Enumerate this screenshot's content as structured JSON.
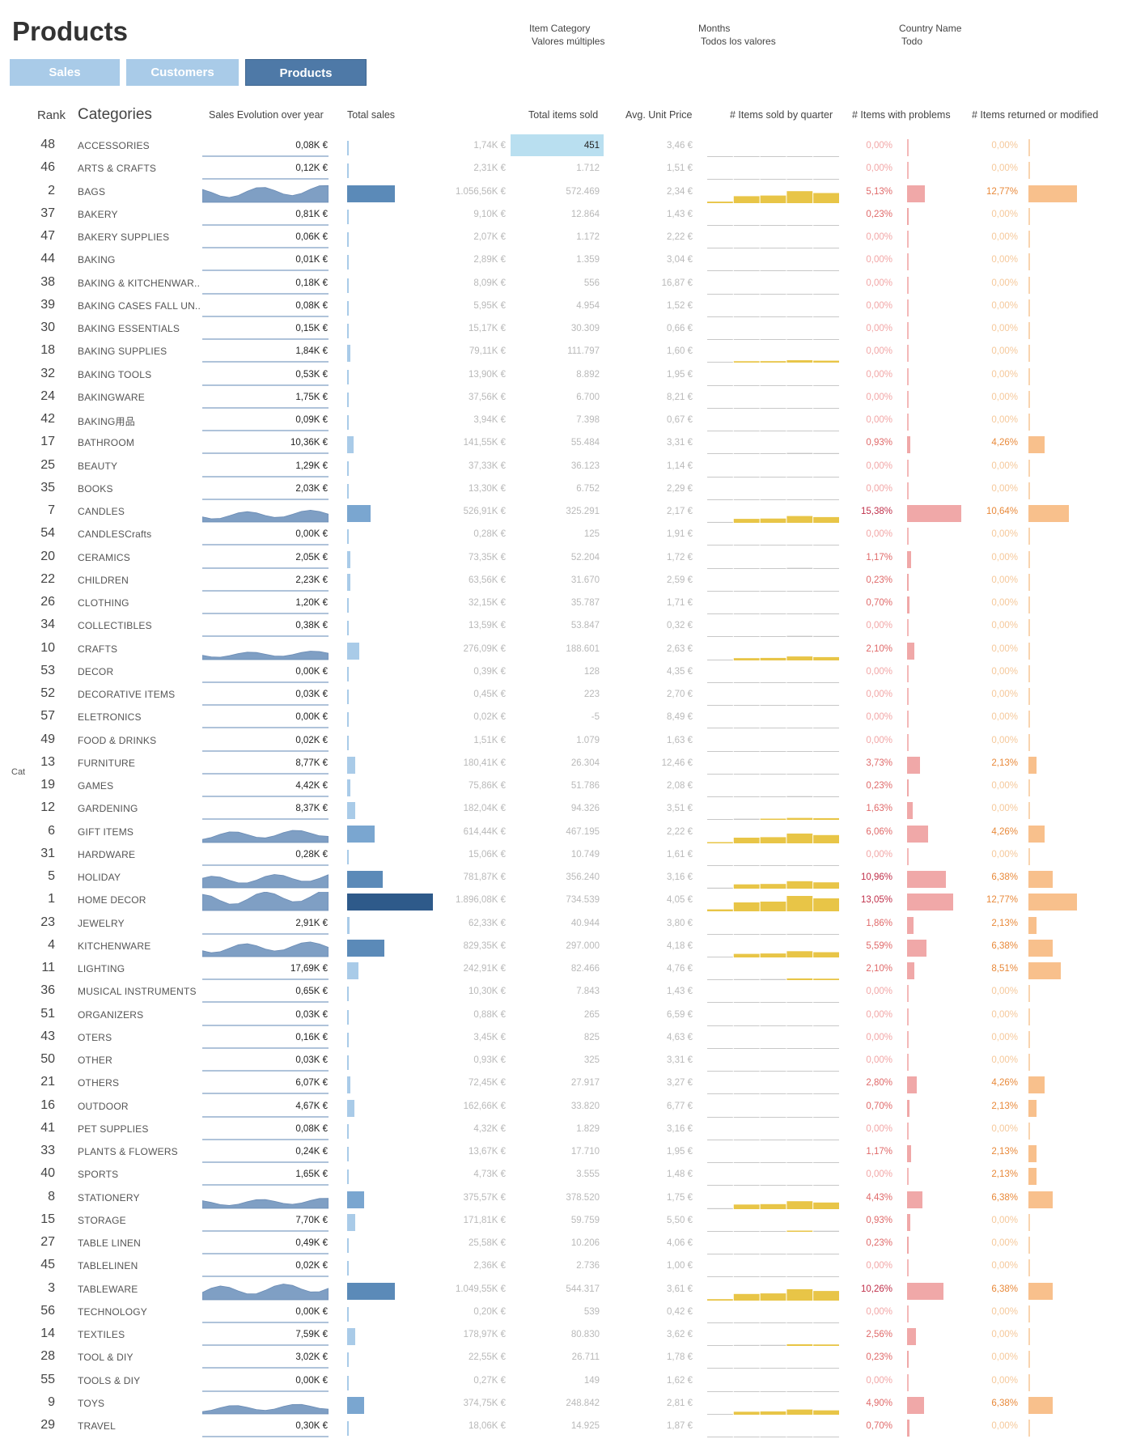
{
  "title": "Products",
  "filters": [
    {
      "label": "Item Category",
      "value": "Valores múltiples"
    },
    {
      "label": "Months",
      "value": "Todos los valores"
    },
    {
      "label": "Country Name",
      "value": "Todo"
    }
  ],
  "tabs": [
    {
      "label": "Sales",
      "active": false
    },
    {
      "label": "Customers",
      "active": false
    },
    {
      "label": "Products",
      "active": true
    }
  ],
  "headers": {
    "rank": "Rank",
    "categories": "Categories",
    "evolution": "Sales Evolution over year",
    "total_sales": "Total sales",
    "total_items": "Total items sold",
    "avg_price": "Avg. Unit Price",
    "items_quarter": "# Items sold by quarter",
    "problems": "# Items with problems",
    "returned": "# Items returned or modified"
  },
  "side_label": "Cat",
  "colors": {
    "total_sales_light": "#a9cbe8",
    "total_sales_dark": "#2e5a8a",
    "evolution_fill": "#7f9fc4",
    "quarter_bar": "#e8c547",
    "problems_bar": "#f0a8a8",
    "returned_bar": "#f8c08c",
    "highlight_cell": "#b9dff0"
  },
  "rows": [
    {
      "rank": "48",
      "category": "ACCESSORIES",
      "year_value": "0,08K €",
      "total_sales": "1,74K €",
      "items": "451",
      "avg_price": "3,46 €",
      "problems": "0,00%",
      "returned": "0,00%"
    },
    {
      "rank": "46",
      "category": "ARTS & CRAFTS",
      "year_value": "0,12K €",
      "total_sales": "2,31K €",
      "items": "1.712",
      "avg_price": "1,51 €",
      "problems": "0,00%",
      "returned": "0,00%"
    },
    {
      "rank": "2",
      "category": "BAGS",
      "year_value": "",
      "total_sales": "1.056,56K €",
      "items": "572.469",
      "avg_price": "2,34 €",
      "problems": "5,13%",
      "returned": "12,77%"
    },
    {
      "rank": "37",
      "category": "BAKERY",
      "year_value": "0,81K €",
      "total_sales": "9,10K €",
      "items": "12.864",
      "avg_price": "1,43 €",
      "problems": "0,23%",
      "returned": "0,00%"
    },
    {
      "rank": "47",
      "category": "BAKERY SUPPLIES",
      "year_value": "0,06K €",
      "total_sales": "2,07K €",
      "items": "1.172",
      "avg_price": "2,22 €",
      "problems": "0,00%",
      "returned": "0,00%"
    },
    {
      "rank": "44",
      "category": "BAKING",
      "year_value": "0,01K €",
      "total_sales": "2,89K €",
      "items": "1.359",
      "avg_price": "3,04 €",
      "problems": "0,00%",
      "returned": "0,00%"
    },
    {
      "rank": "38",
      "category": "BAKING & KITCHENWAR..",
      "year_value": "0,18K €",
      "total_sales": "8,09K €",
      "items": "556",
      "avg_price": "16,87 €",
      "problems": "0,00%",
      "returned": "0,00%"
    },
    {
      "rank": "39",
      "category": "BAKING CASES FALL UN..",
      "year_value": "0,08K €",
      "total_sales": "5,95K €",
      "items": "4.954",
      "avg_price": "1,52 €",
      "problems": "0,00%",
      "returned": "0,00%"
    },
    {
      "rank": "30",
      "category": "BAKING ESSENTIALS",
      "year_value": "0,15K €",
      "total_sales": "15,17K €",
      "items": "30.309",
      "avg_price": "0,66 €",
      "problems": "0,00%",
      "returned": "0,00%"
    },
    {
      "rank": "18",
      "category": "BAKING SUPPLIES",
      "year_value": "1,84K €",
      "total_sales": "79,11K €",
      "items": "111.797",
      "avg_price": "1,60 €",
      "problems": "0,00%",
      "returned": "0,00%"
    },
    {
      "rank": "32",
      "category": "BAKING TOOLS",
      "year_value": "0,53K €",
      "total_sales": "13,90K €",
      "items": "8.892",
      "avg_price": "1,95 €",
      "problems": "0,00%",
      "returned": "0,00%"
    },
    {
      "rank": "24",
      "category": "BAKINGWARE",
      "year_value": "1,75K €",
      "total_sales": "37,56K €",
      "items": "6.700",
      "avg_price": "8,21 €",
      "problems": "0,00%",
      "returned": "0,00%"
    },
    {
      "rank": "42",
      "category": "BAKING用品",
      "year_value": "0,09K €",
      "total_sales": "3,94K €",
      "items": "7.398",
      "avg_price": "0,67 €",
      "problems": "0,00%",
      "returned": "0,00%"
    },
    {
      "rank": "17",
      "category": "BATHROOM",
      "year_value": "10,36K €",
      "total_sales": "141,55K €",
      "items": "55.484",
      "avg_price": "3,31 €",
      "problems": "0,93%",
      "returned": "4,26%"
    },
    {
      "rank": "25",
      "category": "BEAUTY",
      "year_value": "1,29K €",
      "total_sales": "37,33K €",
      "items": "36.123",
      "avg_price": "1,14 €",
      "problems": "0,00%",
      "returned": "0,00%"
    },
    {
      "rank": "35",
      "category": "BOOKS",
      "year_value": "2,03K €",
      "total_sales": "13,30K €",
      "items": "6.752",
      "avg_price": "2,29 €",
      "problems": "0,00%",
      "returned": "0,00%"
    },
    {
      "rank": "7",
      "category": "CANDLES",
      "year_value": "",
      "total_sales": "526,91K €",
      "items": "325.291",
      "avg_price": "2,17 €",
      "problems": "15,38%",
      "returned": "10,64%"
    },
    {
      "rank": "54",
      "category": "CANDLESCrafts",
      "year_value": "0,00K €",
      "total_sales": "0,28K €",
      "items": "125",
      "avg_price": "1,91 €",
      "problems": "0,00%",
      "returned": "0,00%"
    },
    {
      "rank": "20",
      "category": "CERAMICS",
      "year_value": "2,05K €",
      "total_sales": "73,35K €",
      "items": "52.204",
      "avg_price": "1,72 €",
      "problems": "1,17%",
      "returned": "0,00%"
    },
    {
      "rank": "22",
      "category": "CHILDREN",
      "year_value": "2,23K €",
      "total_sales": "63,56K €",
      "items": "31.670",
      "avg_price": "2,59 €",
      "problems": "0,23%",
      "returned": "0,00%"
    },
    {
      "rank": "26",
      "category": "CLOTHING",
      "year_value": "1,20K €",
      "total_sales": "32,15K €",
      "items": "35.787",
      "avg_price": "1,71 €",
      "problems": "0,70%",
      "returned": "0,00%"
    },
    {
      "rank": "34",
      "category": "COLLECTIBLES",
      "year_value": "0,38K €",
      "total_sales": "13,59K €",
      "items": "53.847",
      "avg_price": "0,32 €",
      "problems": "0,00%",
      "returned": "0,00%"
    },
    {
      "rank": "10",
      "category": "CRAFTS",
      "year_value": "",
      "total_sales": "276,09K €",
      "items": "188.601",
      "avg_price": "2,63 €",
      "problems": "2,10%",
      "returned": "0,00%"
    },
    {
      "rank": "53",
      "category": "DECOR",
      "year_value": "0,00K €",
      "total_sales": "0,39K €",
      "items": "128",
      "avg_price": "4,35 €",
      "problems": "0,00%",
      "returned": "0,00%"
    },
    {
      "rank": "52",
      "category": "DECORATIVE ITEMS",
      "year_value": "0,03K €",
      "total_sales": "0,45K €",
      "items": "223",
      "avg_price": "2,70 €",
      "problems": "0,00%",
      "returned": "0,00%"
    },
    {
      "rank": "57",
      "category": "ELETRONICS",
      "year_value": "0,00K €",
      "total_sales": "0,02K €",
      "items": "-5",
      "avg_price": "8,49 €",
      "problems": "0,00%",
      "returned": "0,00%"
    },
    {
      "rank": "49",
      "category": "FOOD & DRINKS",
      "year_value": "0,02K €",
      "total_sales": "1,51K €",
      "items": "1.079",
      "avg_price": "1,63 €",
      "problems": "0,00%",
      "returned": "0,00%"
    },
    {
      "rank": "13",
      "category": "FURNITURE",
      "year_value": "8,77K €",
      "total_sales": "180,41K €",
      "items": "26.304",
      "avg_price": "12,46 €",
      "problems": "3,73%",
      "returned": "2,13%"
    },
    {
      "rank": "19",
      "category": "GAMES",
      "year_value": "4,42K €",
      "total_sales": "75,86K €",
      "items": "51.786",
      "avg_price": "2,08 €",
      "problems": "0,23%",
      "returned": "0,00%"
    },
    {
      "rank": "12",
      "category": "GARDENING",
      "year_value": "8,37K €",
      "total_sales": "182,04K €",
      "items": "94.326",
      "avg_price": "3,51 €",
      "problems": "1,63%",
      "returned": "0,00%"
    },
    {
      "rank": "6",
      "category": "GIFT ITEMS",
      "year_value": "",
      "total_sales": "614,44K €",
      "items": "467.195",
      "avg_price": "2,22 €",
      "problems": "6,06%",
      "returned": "4,26%"
    },
    {
      "rank": "31",
      "category": "HARDWARE",
      "year_value": "0,28K €",
      "total_sales": "15,06K €",
      "items": "10.749",
      "avg_price": "1,61 €",
      "problems": "0,00%",
      "returned": "0,00%"
    },
    {
      "rank": "5",
      "category": "HOLIDAY",
      "year_value": "",
      "total_sales": "781,87K €",
      "items": "356.240",
      "avg_price": "3,16 €",
      "problems": "10,96%",
      "returned": "6,38%"
    },
    {
      "rank": "1",
      "category": "HOME DECOR",
      "year_value": "",
      "total_sales": "1.896,08K €",
      "items": "734.539",
      "avg_price": "4,05 €",
      "problems": "13,05%",
      "returned": "12,77%"
    },
    {
      "rank": "23",
      "category": "JEWELRY",
      "year_value": "2,91K €",
      "total_sales": "62,33K €",
      "items": "40.944",
      "avg_price": "3,80 €",
      "problems": "1,86%",
      "returned": "2,13%"
    },
    {
      "rank": "4",
      "category": "KITCHENWARE",
      "year_value": "",
      "total_sales": "829,35K €",
      "items": "297.000",
      "avg_price": "4,18 €",
      "problems": "5,59%",
      "returned": "6,38%"
    },
    {
      "rank": "11",
      "category": "LIGHTING",
      "year_value": "17,69K €",
      "total_sales": "242,91K €",
      "items": "82.466",
      "avg_price": "4,76 €",
      "problems": "2,10%",
      "returned": "8,51%"
    },
    {
      "rank": "36",
      "category": "MUSICAL INSTRUMENTS",
      "year_value": "0,65K €",
      "total_sales": "10,30K €",
      "items": "7.843",
      "avg_price": "1,43 €",
      "problems": "0,00%",
      "returned": "0,00%"
    },
    {
      "rank": "51",
      "category": "ORGANIZERS",
      "year_value": "0,03K €",
      "total_sales": "0,88K €",
      "items": "265",
      "avg_price": "6,59 €",
      "problems": "0,00%",
      "returned": "0,00%"
    },
    {
      "rank": "43",
      "category": "OTERS",
      "year_value": "0,16K €",
      "total_sales": "3,45K €",
      "items": "825",
      "avg_price": "4,63 €",
      "problems": "0,00%",
      "returned": "0,00%"
    },
    {
      "rank": "50",
      "category": "OTHER",
      "year_value": "0,03K €",
      "total_sales": "0,93K €",
      "items": "325",
      "avg_price": "3,31 €",
      "problems": "0,00%",
      "returned": "0,00%"
    },
    {
      "rank": "21",
      "category": "OTHERS",
      "year_value": "6,07K €",
      "total_sales": "72,45K €",
      "items": "27.917",
      "avg_price": "3,27 €",
      "problems": "2,80%",
      "returned": "4,26%"
    },
    {
      "rank": "16",
      "category": "OUTDOOR",
      "year_value": "4,67K €",
      "total_sales": "162,66K €",
      "items": "33.820",
      "avg_price": "6,77 €",
      "problems": "0,70%",
      "returned": "2,13%"
    },
    {
      "rank": "41",
      "category": "PET SUPPLIES",
      "year_value": "0,08K €",
      "total_sales": "4,32K €",
      "items": "1.829",
      "avg_price": "3,16 €",
      "problems": "0,00%",
      "returned": "0,00%"
    },
    {
      "rank": "33",
      "category": "PLANTS & FLOWERS",
      "year_value": "0,24K €",
      "total_sales": "13,67K €",
      "items": "17.710",
      "avg_price": "1,95 €",
      "problems": "1,17%",
      "returned": "2,13%"
    },
    {
      "rank": "40",
      "category": "SPORTS",
      "year_value": "1,65K €",
      "total_sales": "4,73K €",
      "items": "3.555",
      "avg_price": "1,48 €",
      "problems": "0,00%",
      "returned": "2,13%"
    },
    {
      "rank": "8",
      "category": "STATIONERY",
      "year_value": "",
      "total_sales": "375,57K €",
      "items": "378.520",
      "avg_price": "1,75 €",
      "problems": "4,43%",
      "returned": "6,38%"
    },
    {
      "rank": "15",
      "category": "STORAGE",
      "year_value": "7,70K €",
      "total_sales": "171,81K €",
      "items": "59.759",
      "avg_price": "5,50 €",
      "problems": "0,93%",
      "returned": "0,00%"
    },
    {
      "rank": "27",
      "category": "TABLE LINEN",
      "year_value": "0,49K €",
      "total_sales": "25,58K €",
      "items": "10.206",
      "avg_price": "4,06 €",
      "problems": "0,23%",
      "returned": "0,00%"
    },
    {
      "rank": "45",
      "category": "TABLELINEN",
      "year_value": "0,02K €",
      "total_sales": "2,36K €",
      "items": "2.736",
      "avg_price": "1,00 €",
      "problems": "0,00%",
      "returned": "0,00%"
    },
    {
      "rank": "3",
      "category": "TABLEWARE",
      "year_value": "",
      "total_sales": "1.049,55K €",
      "items": "544.317",
      "avg_price": "3,61 €",
      "problems": "10,26%",
      "returned": "6,38%"
    },
    {
      "rank": "56",
      "category": "TECHNOLOGY",
      "year_value": "0,00K €",
      "total_sales": "0,20K €",
      "items": "539",
      "avg_price": "0,42 €",
      "problems": "0,00%",
      "returned": "0,00%"
    },
    {
      "rank": "14",
      "category": "TEXTILES",
      "year_value": "7,59K €",
      "total_sales": "178,97K €",
      "items": "80.830",
      "avg_price": "3,62 €",
      "problems": "2,56%",
      "returned": "0,00%"
    },
    {
      "rank": "28",
      "category": "TOOL & DIY",
      "year_value": "3,02K €",
      "total_sales": "22,55K €",
      "items": "26.711",
      "avg_price": "1,78 €",
      "problems": "0,23%",
      "returned": "0,00%"
    },
    {
      "rank": "55",
      "category": "TOOLS & DIY",
      "year_value": "0,00K €",
      "total_sales": "0,27K €",
      "items": "149",
      "avg_price": "1,62 €",
      "problems": "0,00%",
      "returned": "0,00%"
    },
    {
      "rank": "9",
      "category": "TOYS",
      "year_value": "",
      "total_sales": "374,75K €",
      "items": "248.842",
      "avg_price": "2,81 €",
      "problems": "4,90%",
      "returned": "6,38%"
    },
    {
      "rank": "29",
      "category": "TRAVEL",
      "year_value": "0,30K €",
      "total_sales": "18,06K €",
      "items": "14.925",
      "avg_price": "1,87 €",
      "problems": "0,70%",
      "returned": "0,00%"
    }
  ]
}
